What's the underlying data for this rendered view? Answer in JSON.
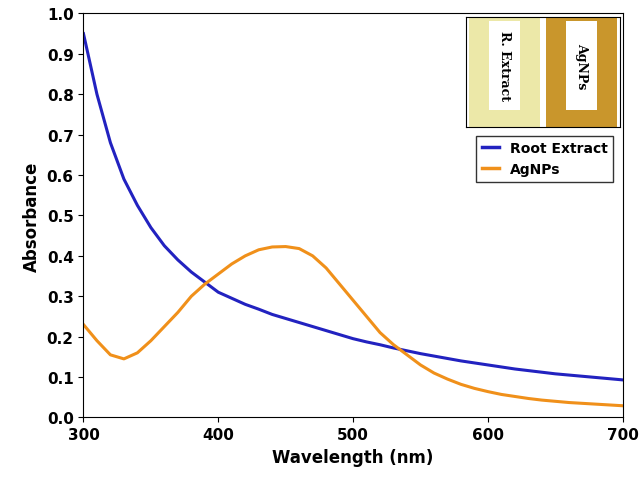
{
  "chart_data": {
    "type": "line",
    "x_label": "Wavelength (nm)",
    "y_label": "Absorbance",
    "x": [
      300,
      310,
      320,
      330,
      340,
      350,
      360,
      370,
      380,
      390,
      400,
      410,
      420,
      430,
      440,
      450,
      460,
      470,
      480,
      490,
      500,
      510,
      520,
      530,
      540,
      550,
      560,
      570,
      580,
      590,
      600,
      610,
      620,
      630,
      640,
      650,
      660,
      670,
      680,
      690,
      700
    ],
    "series": [
      {
        "name": "Root Extract",
        "color": "#2222c0",
        "values": [
          0.95,
          0.8,
          0.68,
          0.59,
          0.525,
          0.47,
          0.425,
          0.39,
          0.36,
          0.335,
          0.31,
          0.295,
          0.28,
          0.268,
          0.255,
          0.245,
          0.235,
          0.225,
          0.215,
          0.205,
          0.195,
          0.187,
          0.18,
          0.172,
          0.165,
          0.158,
          0.152,
          0.146,
          0.14,
          0.135,
          0.13,
          0.125,
          0.12,
          0.116,
          0.112,
          0.108,
          0.105,
          0.102,
          0.099,
          0.096,
          0.093
        ]
      },
      {
        "name": "AgNPs",
        "color": "#f0901a",
        "values": [
          0.23,
          0.19,
          0.155,
          0.145,
          0.16,
          0.19,
          0.225,
          0.26,
          0.3,
          0.33,
          0.355,
          0.38,
          0.4,
          0.415,
          0.422,
          0.423,
          0.418,
          0.4,
          0.37,
          0.33,
          0.29,
          0.25,
          0.21,
          0.18,
          0.155,
          0.13,
          0.11,
          0.095,
          0.082,
          0.072,
          0.064,
          0.057,
          0.052,
          0.047,
          0.043,
          0.04,
          0.037,
          0.035,
          0.033,
          0.031,
          0.029
        ]
      }
    ],
    "xlim": [
      300,
      700
    ],
    "xticks": [
      300,
      400,
      500,
      600,
      700
    ],
    "ylim": [
      0,
      1
    ],
    "yticks": [
      {
        "value": 0,
        "label": "0.0"
      },
      {
        "value": 0.1,
        "label": "0.1"
      },
      {
        "value": 0.2,
        "label": "0.2"
      },
      {
        "value": 0.3,
        "label": "0.3"
      },
      {
        "value": 0.4,
        "label": "0.4"
      },
      {
        "value": 0.5,
        "label": "0.5"
      },
      {
        "value": 0.6,
        "label": "0.6"
      },
      {
        "value": 0.7,
        "label": "0.7"
      },
      {
        "value": 0.8,
        "label": "0.8"
      },
      {
        "value": 0.9,
        "label": "0.9"
      },
      {
        "value": 1,
        "label": "1.0"
      }
    ],
    "legend": "upper right",
    "annotations": [
      "R. Extract",
      "AgNPs"
    ]
  }
}
